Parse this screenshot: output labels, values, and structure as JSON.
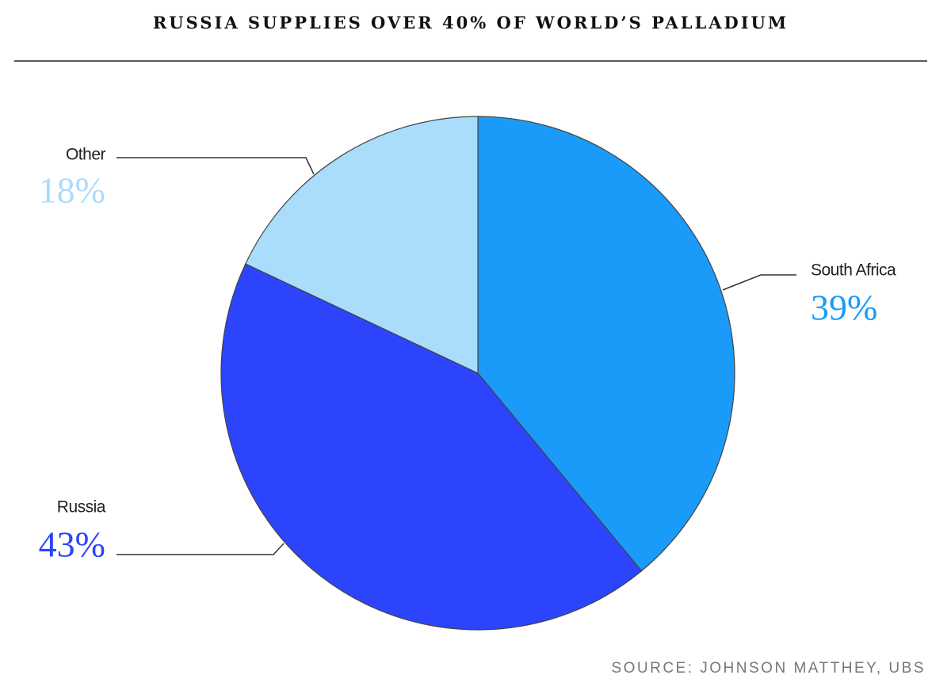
{
  "chart_data": {
    "type": "pie",
    "title": "RUSSIA SUPPLIES OVER 40% OF WORLD’S PALLADIUM",
    "source": "SOURCE: JOHNSON MATTHEY, UBS",
    "categories": [
      "South Africa",
      "Russia",
      "Other"
    ],
    "values": [
      39,
      43,
      18
    ],
    "value_labels": [
      "39%",
      "43%",
      "18%"
    ],
    "colors": [
      "#1a9bfa",
      "#2b44fc",
      "#aadcfb"
    ]
  }
}
